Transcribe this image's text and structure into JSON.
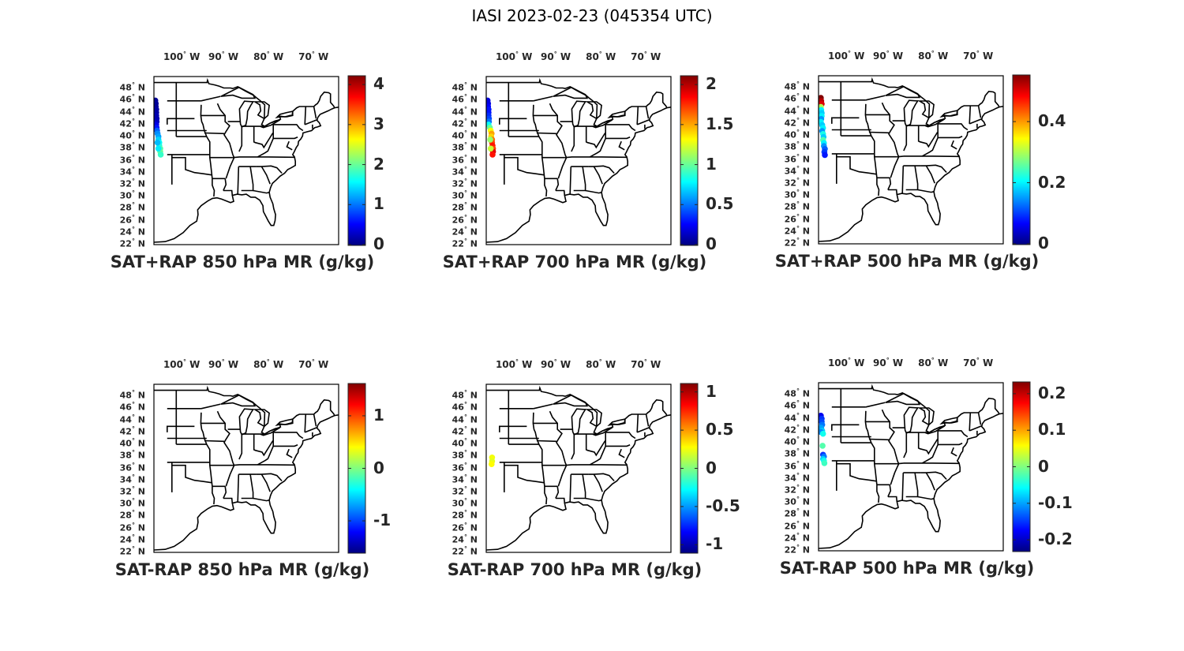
{
  "title": "IASI 2023-02-23 (045354 UTC)",
  "map_extent": {
    "lon": [
      -107,
      -66
    ],
    "lat": [
      22,
      50
    ]
  },
  "lon_ticks": [
    {
      "value": -100,
      "label": "100",
      "suffix": "W"
    },
    {
      "value": -90,
      "label": "90",
      "suffix": "W"
    },
    {
      "value": -80,
      "label": "80",
      "suffix": "W"
    },
    {
      "value": -70,
      "label": "70",
      "suffix": "W"
    }
  ],
  "lat_ticks": [
    {
      "value": 48,
      "label": "48",
      "suffix": "N"
    },
    {
      "value": 46,
      "label": "46",
      "suffix": "N"
    },
    {
      "value": 44,
      "label": "44",
      "suffix": "N"
    },
    {
      "value": 42,
      "label": "42",
      "suffix": "N"
    },
    {
      "value": 40,
      "label": "40",
      "suffix": "N"
    },
    {
      "value": 38,
      "label": "38",
      "suffix": "N"
    },
    {
      "value": 36,
      "label": "36",
      "suffix": "N"
    },
    {
      "value": 34,
      "label": "34",
      "suffix": "N"
    },
    {
      "value": 32,
      "label": "32",
      "suffix": "N"
    },
    {
      "value": 30,
      "label": "30",
      "suffix": "N"
    },
    {
      "value": 28,
      "label": "28",
      "suffix": "N"
    },
    {
      "value": 26,
      "label": "26",
      "suffix": "N"
    },
    {
      "value": 24,
      "label": "24",
      "suffix": "N"
    },
    {
      "value": 22,
      "label": "22",
      "suffix": "N"
    }
  ],
  "colormap": "jet",
  "panels": [
    {
      "title": "SAT+RAP 850 hPa MR (g/kg)",
      "clim": [
        0,
        4.2
      ],
      "ticks": [
        {
          "v": 0,
          "t": "0"
        },
        {
          "v": 1,
          "t": "1"
        },
        {
          "v": 2,
          "t": "2"
        },
        {
          "v": 3,
          "t": "3"
        },
        {
          "v": 4,
          "t": "4"
        }
      ],
      "points": [
        [
          -106.7,
          46.0,
          0.1
        ],
        [
          -106.6,
          45.5,
          0.1
        ],
        [
          -106.6,
          45.0,
          0.1
        ],
        [
          -106.5,
          44.5,
          0.15
        ],
        [
          -106.5,
          44.0,
          0.15
        ],
        [
          -106.5,
          43.5,
          0.2
        ],
        [
          -106.4,
          43.0,
          0.2
        ],
        [
          -106.4,
          42.5,
          0.25
        ],
        [
          -106.5,
          42.0,
          0.4
        ],
        [
          -106.4,
          41.5,
          0.6
        ],
        [
          -106.3,
          41.0,
          0.9
        ],
        [
          -106.2,
          40.5,
          1.1
        ],
        [
          -106.0,
          40.0,
          1.2
        ],
        [
          -106.0,
          39.5,
          1.4
        ],
        [
          -105.8,
          39.0,
          1.6
        ],
        [
          -105.8,
          38.5,
          1.7
        ],
        [
          -105.6,
          38.0,
          1.9
        ],
        [
          -105.6,
          37.5,
          2.0
        ],
        [
          -105.5,
          37.0,
          1.8
        ],
        [
          -106.2,
          39.0,
          1.3
        ],
        [
          -106.0,
          38.0,
          1.5
        ]
      ]
    },
    {
      "title": "SAT+RAP 700 hPa MR (g/kg)",
      "clim": [
        0,
        2.1
      ],
      "ticks": [
        {
          "v": 0,
          "t": "0"
        },
        {
          "v": 0.5,
          "t": "0.5"
        },
        {
          "v": 1,
          "t": "1"
        },
        {
          "v": 1.5,
          "t": "1.5"
        },
        {
          "v": 2,
          "t": "2"
        }
      ],
      "points": [
        [
          -106.7,
          46.0,
          0.2
        ],
        [
          -106.6,
          45.5,
          0.2
        ],
        [
          -106.6,
          45.0,
          0.25
        ],
        [
          -106.5,
          44.5,
          0.3
        ],
        [
          -106.5,
          44.0,
          0.3
        ],
        [
          -106.5,
          43.5,
          0.35
        ],
        [
          -106.4,
          43.0,
          0.4
        ],
        [
          -106.4,
          42.5,
          0.5
        ],
        [
          -106.5,
          42.0,
          0.8
        ],
        [
          -106.2,
          41.5,
          1.0
        ],
        [
          -106.0,
          41.0,
          1.3
        ],
        [
          -105.8,
          40.5,
          1.5
        ],
        [
          -105.9,
          40.0,
          1.4
        ],
        [
          -105.7,
          39.5,
          1.6
        ],
        [
          -105.7,
          39.0,
          1.7
        ],
        [
          -105.6,
          38.5,
          1.8
        ],
        [
          -105.5,
          38.0,
          1.7
        ],
        [
          -105.5,
          37.5,
          1.9
        ],
        [
          -105.6,
          37.0,
          1.8
        ],
        [
          -106.1,
          39.5,
          1.1
        ],
        [
          -106.0,
          38.0,
          1.2
        ]
      ]
    },
    {
      "title": "SAT+RAP 500 hPa MR (g/kg)",
      "clim": [
        0,
        0.55
      ],
      "ticks": [
        {
          "v": 0,
          "t": "0"
        },
        {
          "v": 0.2,
          "t": "0.2"
        },
        {
          "v": 0.4,
          "t": "0.4"
        }
      ],
      "points": [
        [
          -106.5,
          46.3,
          0.55
        ],
        [
          -106.4,
          45.8,
          0.52
        ],
        [
          -106.3,
          45.3,
          0.5
        ],
        [
          -106.5,
          44.8,
          0.3
        ],
        [
          -106.4,
          44.3,
          0.2
        ],
        [
          -106.3,
          43.8,
          0.18
        ],
        [
          -106.3,
          43.3,
          0.2
        ],
        [
          -106.4,
          42.8,
          0.15
        ],
        [
          -106.5,
          42.3,
          0.2
        ],
        [
          -106.2,
          41.8,
          0.18
        ],
        [
          -106.0,
          41.3,
          0.2
        ],
        [
          -106.2,
          40.8,
          0.15
        ],
        [
          -106.0,
          40.3,
          0.22
        ],
        [
          -105.9,
          39.8,
          0.18
        ],
        [
          -106.0,
          39.3,
          0.25
        ],
        [
          -105.8,
          38.8,
          0.2
        ],
        [
          -105.8,
          38.3,
          0.15
        ],
        [
          -105.6,
          37.8,
          0.12
        ],
        [
          -105.7,
          37.3,
          0.1
        ],
        [
          -105.6,
          36.8,
          0.08
        ]
      ]
    },
    {
      "title": "SAT-RAP 850 hPa MR (g/kg)",
      "clim": [
        -1.6,
        1.6
      ],
      "ticks": [
        {
          "v": -1,
          "t": "-1"
        },
        {
          "v": 0,
          "t": "0"
        },
        {
          "v": 1,
          "t": "1"
        }
      ],
      "points": []
    },
    {
      "title": "SAT-RAP 700 hPa MR (g/kg)",
      "clim": [
        -1.1,
        1.1
      ],
      "ticks": [
        {
          "v": -1,
          "t": "-1"
        },
        {
          "v": -0.5,
          "t": "-0.5"
        },
        {
          "v": 0,
          "t": "0"
        },
        {
          "v": 0.5,
          "t": "0.5"
        },
        {
          "v": 1,
          "t": "1"
        }
      ],
      "points": [
        [
          -105.7,
          37.8,
          0.25
        ],
        [
          -105.7,
          37.2,
          0.22
        ],
        [
          -105.8,
          36.7,
          0.28
        ]
      ]
    },
    {
      "title": "SAT-RAP 500 hPa MR (g/kg)",
      "clim": [
        -0.23,
        0.23
      ],
      "ticks": [
        {
          "v": -0.2,
          "t": "-0.2"
        },
        {
          "v": -0.1,
          "t": "-0.1"
        },
        {
          "v": 0,
          "t": "0"
        },
        {
          "v": 0.1,
          "t": "0.1"
        },
        {
          "v": 0.2,
          "t": "0.2"
        }
      ],
      "points": [
        [
          -106.5,
          44.5,
          -0.18
        ],
        [
          -106.3,
          44.0,
          -0.15
        ],
        [
          -106.3,
          43.5,
          -0.14
        ],
        [
          -106.2,
          43.0,
          -0.12
        ],
        [
          -106.4,
          42.5,
          -0.1
        ],
        [
          -106.2,
          42.0,
          -0.08
        ],
        [
          -106.5,
          41.8,
          -0.11
        ],
        [
          -106.0,
          41.5,
          -0.05
        ],
        [
          -106.0,
          38.0,
          -0.15
        ],
        [
          -105.8,
          37.7,
          -0.12
        ],
        [
          -106.0,
          37.3,
          -0.08
        ],
        [
          -105.8,
          37.0,
          -0.05
        ],
        [
          -105.7,
          36.6,
          -0.03
        ],
        [
          -106.1,
          39.5,
          -0.02
        ]
      ]
    }
  ]
}
